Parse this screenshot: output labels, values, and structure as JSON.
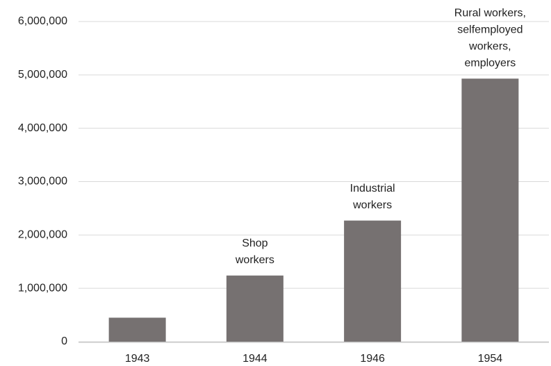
{
  "chart_data": {
    "type": "bar",
    "categories": [
      "1943",
      "1944",
      "1946",
      "1954"
    ],
    "values": [
      450000,
      1240000,
      2270000,
      4930000
    ],
    "bar_labels": [
      null,
      [
        "Shop",
        "workers"
      ],
      [
        "Industrial",
        "workers"
      ],
      [
        "Rural workers,",
        "selfemployed",
        "workers,",
        "employers"
      ]
    ],
    "color": "#767171",
    "ylim": [
      0,
      6000000
    ],
    "yticks": [
      0,
      {
        "value": 1000000,
        "label": "1,000,000"
      },
      {
        "value": 2000000,
        "label": "2,000,000"
      },
      {
        "value": 3000000,
        "label": "3,000,000"
      },
      {
        "value": 4000000,
        "label": "4,000,000"
      },
      {
        "value": 5000000,
        "label": "5,000,000"
      },
      {
        "value": 6000000,
        "label": "6,000,000"
      }
    ],
    "grid": true
  }
}
